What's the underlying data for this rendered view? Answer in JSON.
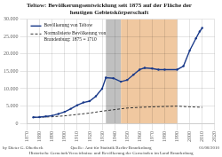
{
  "chart_data": {
    "type": "line",
    "title": "Teltow: Bevölkerungsentwicklung seit 1875 auf der Fläche der\nheutigen Gebietskörperschaft",
    "xlim": [
      1870,
      2020
    ],
    "xticks": [
      1870,
      1880,
      1890,
      1900,
      1910,
      1920,
      1930,
      1940,
      1950,
      1960,
      1970,
      1980,
      1990,
      2000,
      2010,
      2020
    ],
    "ylim": [
      0,
      30000
    ],
    "yticks": [
      0,
      {
        "value": 5000,
        "label": "5.000"
      },
      {
        "value": 10000,
        "label": "10.000"
      },
      {
        "value": 15000,
        "label": "15.000"
      },
      {
        "value": 20000,
        "label": "20.000"
      },
      {
        "value": 25000,
        "label": "25.000"
      },
      {
        "value": 30000,
        "label": "30.000"
      }
    ],
    "grid": true,
    "legend": "upper left",
    "series": [
      {
        "name": "Bevölkerung von Teltow",
        "color": "#1a3a8a",
        "line_style": "solid",
        "marker": "circle",
        "x": [
          1875,
          1880,
          1885,
          1890,
          1895,
          1900,
          1905,
          1910,
          1915,
          1920,
          1925,
          1930,
          1933,
          1939,
          1945,
          1950,
          1955,
          1960,
          1964,
          1970,
          1975,
          1980,
          1990,
          1995,
          2000,
          2005,
          2008,
          2010
        ],
        "values": [
          1710,
          1800,
          2000,
          2200,
          2700,
          3300,
          4200,
          5200,
          6000,
          6400,
          7800,
          10000,
          13200,
          13000,
          12000,
          12500,
          14000,
          15500,
          16000,
          15800,
          15500,
          15500,
          15500,
          16500,
          21000,
          24500,
          26500,
          27500
        ]
      },
      {
        "name": "Normalisierte Bevölkerung von\nBrandenburg: 1875 = 1710",
        "color": "#333333",
        "line_style": "dashed",
        "x": [
          1875,
          1880,
          1890,
          1900,
          1910,
          1920,
          1930,
          1939,
          1950,
          1960,
          1970,
          1980,
          1990,
          2000,
          2008,
          2010
        ],
        "values": [
          1710,
          1760,
          1880,
          2150,
          2550,
          2950,
          3500,
          3900,
          4400,
          4600,
          4750,
          4850,
          4950,
          4750,
          4650,
          4600
        ]
      }
    ],
    "regions": [
      {
        "start": 1933,
        "end": 1945,
        "color": "#c0c0c0"
      },
      {
        "start": 1945,
        "end": 1990,
        "color": "#f0c8a0"
      }
    ],
    "annotations": [
      "by Dieter G. Oberbeck",
      "Quelle: Amt für Statistik Berlin-Brandenburg\nHistorische GemeindeVerzeichnisse und Bevölkerung der Gemeinden im Land Brandenburg",
      "01/08/2010"
    ]
  }
}
